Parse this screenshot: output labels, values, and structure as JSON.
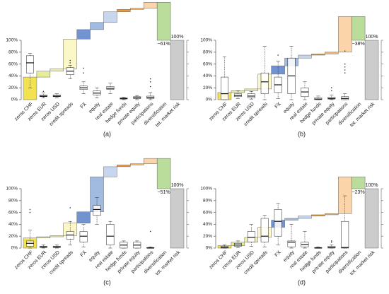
{
  "chart_data": [
    {
      "type": "waterfall",
      "panel_label": "(a)",
      "categories": [
        "zeros CHF",
        "zeros EUR",
        "zeros USD",
        "credit spreads",
        "FX",
        "equity",
        "real estate",
        "hedge funds",
        "private equity",
        "participations",
        "diversification",
        "tot. market risk"
      ],
      "values": [
        38,
        10,
        4,
        50,
        16,
        12,
        18,
        4,
        2,
        10,
        -64,
        100
      ],
      "last_is_total": true,
      "annotation": "~61%",
      "total_label": "100%",
      "colors": [
        "#f2e250",
        "#e6ec98",
        "#f1efb2",
        "#fbf7c6",
        "#7194d1",
        "#a1badf",
        "#c6d6ef",
        "#e89a3a",
        "#f1b772",
        "#fbd4aa",
        "#bbdd9c",
        "#cccccc"
      ],
      "ylim": [
        0,
        165
      ],
      "yticks": [
        {
          "value": 0,
          "label": "0%"
        },
        {
          "value": 20,
          "label": "20%"
        },
        {
          "value": 40,
          "label": "40%"
        },
        {
          "value": 60,
          "label": "60%"
        },
        {
          "value": 80,
          "label": "80%"
        },
        {
          "value": 100,
          "label": "100%"
        }
      ],
      "boxes": [
        {
          "whislo": 20,
          "q1": 45,
          "med": 62,
          "q3": 74,
          "whishi": 78,
          "fliers": []
        },
        {
          "whislo": 3,
          "q1": 5,
          "med": 6,
          "q3": 8,
          "whishi": 11,
          "fliers": [
            14
          ]
        },
        {
          "whislo": 3,
          "q1": 5,
          "med": 6,
          "q3": 8,
          "whishi": 10,
          "fliers": []
        },
        {
          "whislo": 35,
          "q1": 42,
          "med": 48,
          "q3": 54,
          "whishi": 58,
          "fliers": [
            62,
            66
          ]
        },
        {
          "whislo": 10,
          "q1": 17,
          "med": 20,
          "q3": 23,
          "whishi": 30,
          "fliers": [
            45,
            53
          ]
        },
        {
          "whislo": 3,
          "q1": 8,
          "med": 11,
          "q3": 15,
          "whishi": 20,
          "fliers": []
        },
        {
          "whislo": 10,
          "q1": 17,
          "med": 19,
          "q3": 22,
          "whishi": 28,
          "fliers": []
        },
        {
          "whislo": 0,
          "q1": 1,
          "med": 2,
          "q3": 3,
          "whishi": 4,
          "fliers": []
        },
        {
          "whislo": 0,
          "q1": 2,
          "med": 3,
          "q3": 5,
          "whishi": 7,
          "fliers": []
        },
        {
          "whislo": 0,
          "q1": 2,
          "med": 4,
          "q3": 6,
          "whishi": 12,
          "fliers": [
            22,
            30,
            35
          ]
        },
        null,
        null
      ]
    },
    {
      "type": "waterfall",
      "panel_label": "(b)",
      "categories": [
        "zeros CHF",
        "zeros EUR",
        "zeros USD",
        "credit spreads",
        "FX",
        "equity",
        "real estate",
        "hedge funds",
        "private equity",
        "participations",
        "diversification",
        "tot. market risk"
      ],
      "values": [
        12,
        3,
        3,
        25,
        14,
        13,
        5,
        2,
        3,
        60,
        -40,
        100
      ],
      "last_is_total": true,
      "annotation": "~38%",
      "total_label": "100%",
      "colors": [
        "#f2e250",
        "#e6ec98",
        "#f1efb2",
        "#fbf7c6",
        "#7194d1",
        "#a1badf",
        "#c6d6ef",
        "#e89a3a",
        "#f1b772",
        "#fbd4aa",
        "#bbdd9c",
        "#cccccc"
      ],
      "ylim": [
        0,
        165
      ],
      "yticks": [
        {
          "value": 0,
          "label": "0%"
        },
        {
          "value": 20,
          "label": "20%"
        },
        {
          "value": 40,
          "label": "40%"
        },
        {
          "value": 60,
          "label": "60%"
        },
        {
          "value": 80,
          "label": "80%"
        },
        {
          "value": 100,
          "label": "100%"
        }
      ],
      "boxes": [
        {
          "whislo": 0,
          "q1": 0,
          "med": 10,
          "q3": 38,
          "whishi": 72,
          "fliers": []
        },
        {
          "whislo": 2,
          "q1": 5,
          "med": 7,
          "q3": 10,
          "whishi": 15,
          "fliers": []
        },
        {
          "whislo": 1,
          "q1": 3,
          "med": 6,
          "q3": 10,
          "whishi": 14,
          "fliers": []
        },
        {
          "whislo": 0,
          "q1": 10,
          "med": 30,
          "q3": 45,
          "whishi": 90,
          "fliers": []
        },
        {
          "whislo": 2,
          "q1": 12,
          "med": 25,
          "q3": 38,
          "whishi": 65,
          "fliers": [
            75
          ]
        },
        {
          "whislo": 0,
          "q1": 10,
          "med": 40,
          "q3": 70,
          "whishi": 90,
          "fliers": []
        },
        {
          "whislo": 0,
          "q1": 5,
          "med": 13,
          "q3": 20,
          "whishi": 30,
          "fliers": []
        },
        {
          "whislo": 0,
          "q1": 0,
          "med": 1,
          "q3": 3,
          "whishi": 6,
          "fliers": []
        },
        {
          "whislo": 0,
          "q1": 1,
          "med": 2,
          "q3": 4,
          "whishi": 8,
          "fliers": [
            15,
            20
          ]
        },
        {
          "whislo": 0,
          "q1": 0,
          "med": 2,
          "q3": 5,
          "whishi": 10,
          "fliers": [
            45,
            50,
            55,
            60,
            82
          ]
        },
        null,
        null
      ]
    },
    {
      "type": "waterfall",
      "panel_label": "(c)",
      "categories": [
        "zeros CHF",
        "zeros EUR",
        "zeros USD",
        "credit spreads",
        "FX",
        "equity",
        "real estate",
        "hedge funds",
        "private equity",
        "participations",
        "diversification",
        "tot. market risk"
      ],
      "values": [
        17,
        2,
        2,
        21,
        19,
        59,
        17,
        3,
        2,
        9,
        -51,
        100
      ],
      "last_is_total": true,
      "annotation": "~51%",
      "total_label": "100%",
      "colors": [
        "#f2e250",
        "#e6ec98",
        "#f1efb2",
        "#fbf7c6",
        "#7194d1",
        "#a1badf",
        "#c6d6ef",
        "#e89a3a",
        "#f1b772",
        "#fbd4aa",
        "#bbdd9c",
        "#cccccc"
      ],
      "ylim": [
        0,
        165
      ],
      "yticks": [
        {
          "value": 0,
          "label": "0%"
        },
        {
          "value": 20,
          "label": "20%"
        },
        {
          "value": 40,
          "label": "40%"
        },
        {
          "value": 60,
          "label": "60%"
        },
        {
          "value": 80,
          "label": "80%"
        },
        {
          "value": 100,
          "label": "100%"
        }
      ],
      "boxes": [
        {
          "whislo": 0,
          "q1": 3,
          "med": 8,
          "q3": 12,
          "whishi": 30,
          "fliers": [
            60,
            65
          ]
        },
        {
          "whislo": 0,
          "q1": 1,
          "med": 2,
          "q3": 3,
          "whishi": 5,
          "fliers": []
        },
        {
          "whislo": 0,
          "q1": 1,
          "med": 2,
          "q3": 3,
          "whishi": 5,
          "fliers": []
        },
        {
          "whislo": 5,
          "q1": 15,
          "med": 22,
          "q3": 28,
          "whishi": 45,
          "fliers": [
            68
          ]
        },
        {
          "whislo": 2,
          "q1": 10,
          "med": 20,
          "q3": 28,
          "whishi": 40,
          "fliers": []
        },
        {
          "whislo": 40,
          "q1": 55,
          "med": 65,
          "q3": 72,
          "whishi": 85,
          "fliers": []
        },
        {
          "whislo": 0,
          "q1": 5,
          "med": 20,
          "q3": 40,
          "whishi": 45,
          "fliers": []
        },
        {
          "whislo": 0,
          "q1": 0,
          "med": 5,
          "q3": 10,
          "whishi": 12,
          "fliers": []
        },
        {
          "whislo": 0,
          "q1": 0,
          "med": 5,
          "q3": 10,
          "whishi": 12,
          "fliers": []
        },
        {
          "whislo": 0,
          "q1": 0,
          "med": 0,
          "q3": 1,
          "whishi": 2,
          "fliers": [
            28
          ]
        },
        null,
        null
      ]
    },
    {
      "type": "waterfall",
      "panel_label": "(d)",
      "categories": [
        "zeros CHF",
        "zeros EUR",
        "zeros USD",
        "credit spreads",
        "FX",
        "equity",
        "real estate",
        "hedge funds",
        "private equity",
        "participations",
        "diversification",
        "tot. market risk"
      ],
      "values": [
        4,
        6,
        8,
        17,
        12,
        3,
        4,
        2,
        2,
        62,
        -20,
        100
      ],
      "last_is_total": true,
      "annotation": "~23%",
      "total_label": "100%",
      "colors": [
        "#f2e250",
        "#e6ec98",
        "#f1efb2",
        "#fbf7c6",
        "#7194d1",
        "#a1badf",
        "#c6d6ef",
        "#e89a3a",
        "#f1b772",
        "#fbd4aa",
        "#bbdd9c",
        "#cccccc"
      ],
      "ylim": [
        0,
        165
      ],
      "yticks": [
        {
          "value": 0,
          "label": "0%"
        },
        {
          "value": 20,
          "label": "20%"
        },
        {
          "value": 40,
          "label": "40%"
        },
        {
          "value": 60,
          "label": "60%"
        },
        {
          "value": 80,
          "label": "80%"
        },
        {
          "value": 100,
          "label": "100%"
        }
      ],
      "boxes": [
        {
          "whislo": 0,
          "q1": 0,
          "med": 1,
          "q3": 3,
          "whishi": 5,
          "fliers": []
        },
        {
          "whislo": 1,
          "q1": 3,
          "med": 5,
          "q3": 8,
          "whishi": 12,
          "fliers": []
        },
        {
          "whislo": 3,
          "q1": 10,
          "med": 18,
          "q3": 28,
          "whishi": 40,
          "fliers": []
        },
        {
          "whislo": 2,
          "q1": 10,
          "med": 20,
          "q3": 50,
          "whishi": 55,
          "fliers": []
        },
        {
          "whislo": 5,
          "q1": 20,
          "med": 45,
          "q3": 65,
          "whishi": 75,
          "fliers": []
        },
        {
          "whislo": 0,
          "q1": 2,
          "med": 10,
          "q3": 12,
          "whishi": 40,
          "fliers": []
        },
        {
          "whislo": 0,
          "q1": 2,
          "med": 6,
          "q3": 10,
          "whishi": 28,
          "fliers": []
        },
        {
          "whislo": 0,
          "q1": 0,
          "med": 0,
          "q3": 1,
          "whishi": 2,
          "fliers": []
        },
        {
          "whislo": 0,
          "q1": 0,
          "med": 1,
          "q3": 3,
          "whishi": 5,
          "fliers": [
            10,
            12
          ]
        },
        {
          "whislo": 0,
          "q1": 0,
          "med": 1,
          "q3": 45,
          "whishi": 88,
          "fliers": []
        },
        null,
        null
      ]
    }
  ]
}
